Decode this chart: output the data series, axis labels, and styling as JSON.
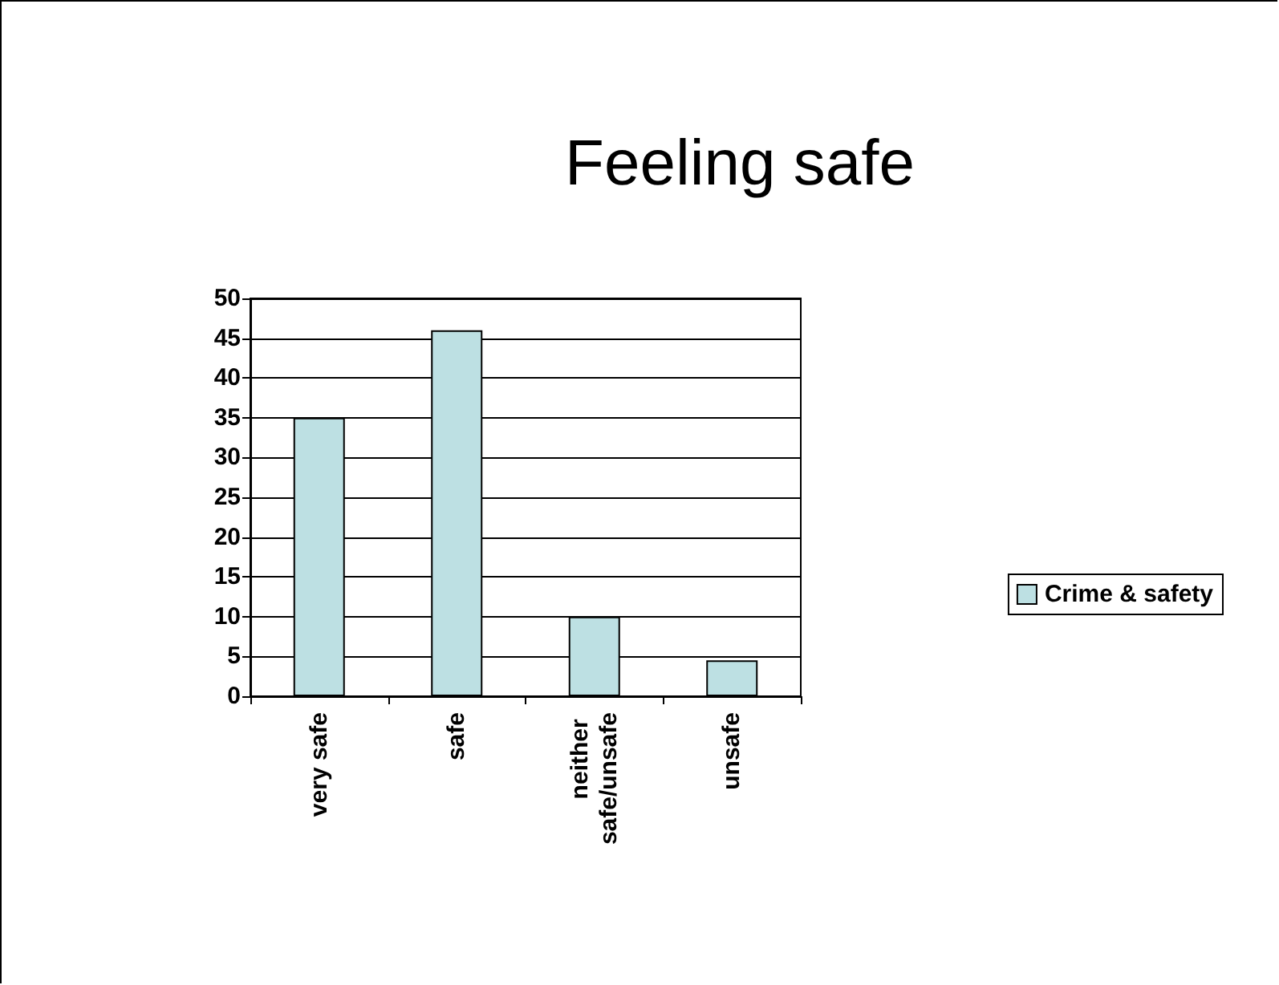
{
  "chart_data": {
    "type": "bar",
    "title": "Feeling safe",
    "categories": [
      "very safe",
      "safe",
      "neither safe/unsafe",
      "unsafe"
    ],
    "series": [
      {
        "name": "Crime & safety",
        "color": "#bde0e3",
        "values": [
          35,
          46,
          10,
          4.5
        ]
      }
    ],
    "ylim": [
      0,
      50
    ],
    "yticks": [
      0,
      5,
      10,
      15,
      20,
      25,
      30,
      35,
      40,
      45,
      50
    ],
    "grid": "y",
    "legend": "right"
  }
}
